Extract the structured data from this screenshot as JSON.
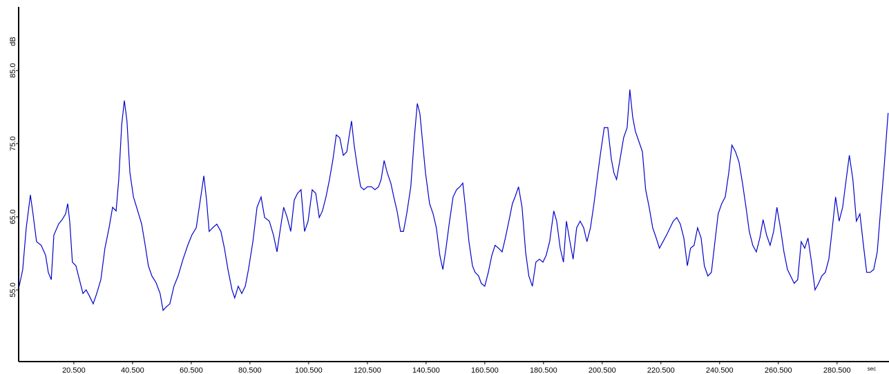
{
  "chart_data": {
    "type": "line",
    "y_label": "dB",
    "x_label": "sec",
    "color": "#0000cc",
    "xlim": [
      1.7,
      298.2
    ],
    "ylim": [
      45.2,
      93.7
    ],
    "xticks": [
      {
        "value": 20.5,
        "label": "20.500"
      },
      {
        "value": 40.5,
        "label": "40.500"
      },
      {
        "value": 60.5,
        "label": "60.500"
      },
      {
        "value": 80.5,
        "label": "80.500"
      },
      {
        "value": 100.5,
        "label": "100.500"
      },
      {
        "value": 120.5,
        "label": "120.500"
      },
      {
        "value": 140.5,
        "label": "140.500"
      },
      {
        "value": 160.5,
        "label": "160.500"
      },
      {
        "value": 180.5,
        "label": "180.500"
      },
      {
        "value": 200.5,
        "label": "200.500"
      },
      {
        "value": 220.5,
        "label": "220.500"
      },
      {
        "value": 240.5,
        "label": "240.500"
      },
      {
        "value": 260.5,
        "label": "260.500"
      },
      {
        "value": 280.5,
        "label": "280.500"
      }
    ],
    "yticks": [
      {
        "value": 55,
        "label": "55.0"
      },
      {
        "value": 65,
        "label": "65.0"
      },
      {
        "value": 75,
        "label": "75.0"
      },
      {
        "value": 85,
        "label": "85.0"
      }
    ],
    "x": [
      1.9,
      3.1,
      4.3,
      5.7,
      6.6,
      7.8,
      9.4,
      10.9,
      11.8,
      12.8,
      13.7,
      15.3,
      16.5,
      17.7,
      18.4,
      19.1,
      20.0,
      21.2,
      22.4,
      23.6,
      24.7,
      25.9,
      27.1,
      28.3,
      29.7,
      31.1,
      32.5,
      33.7,
      34.9,
      35.8,
      36.8,
      37.7,
      38.6,
      39.6,
      40.8,
      41.9,
      43.6,
      44.8,
      45.9,
      47.1,
      48.5,
      49.9,
      50.9,
      51.8,
      53.2,
      54.6,
      56.0,
      57.7,
      59.3,
      60.7,
      62.2,
      63.6,
      64.8,
      65.7,
      66.6,
      67.8,
      69.2,
      70.6,
      71.8,
      73.0,
      74.4,
      75.3,
      76.5,
      77.7,
      78.9,
      80.0,
      81.5,
      82.9,
      84.3,
      85.5,
      87.1,
      88.5,
      89.7,
      90.9,
      92.0,
      93.2,
      94.4,
      95.6,
      96.7,
      97.9,
      99.1,
      100.3,
      101.7,
      102.9,
      104.1,
      105.2,
      106.4,
      107.6,
      108.8,
      109.9,
      111.1,
      112.3,
      113.5,
      114.2,
      115.1,
      116.0,
      117.2,
      118.2,
      119.3,
      120.5,
      121.9,
      123.1,
      124.3,
      125.2,
      126.2,
      127.3,
      128.5,
      129.5,
      130.6,
      131.8,
      132.8,
      133.9,
      135.3,
      136.5,
      137.5,
      138.4,
      139.3,
      140.3,
      141.7,
      142.9,
      144.0,
      145.2,
      146.2,
      147.3,
      148.5,
      149.7,
      150.9,
      152.0,
      153.0,
      153.9,
      155.1,
      156.3,
      157.2,
      158.4,
      159.3,
      160.5,
      161.7,
      162.9,
      164.0,
      165.2,
      166.4,
      167.5,
      168.7,
      169.9,
      170.8,
      172.0,
      173.2,
      174.4,
      175.5,
      176.7,
      177.9,
      179.1,
      180.3,
      181.4,
      182.6,
      184.0,
      185.0,
      186.2,
      187.3,
      188.3,
      189.5,
      190.6,
      191.8,
      193.0,
      194.2,
      195.3,
      196.5,
      197.7,
      198.9,
      200.0,
      201.2,
      202.4,
      203.6,
      204.5,
      205.4,
      206.6,
      207.8,
      209.0,
      209.9,
      210.9,
      211.8,
      213.0,
      214.2,
      215.3,
      216.5,
      217.7,
      218.9,
      220.0,
      221.2,
      222.4,
      223.6,
      224.7,
      225.9,
      227.1,
      228.3,
      229.5,
      230.6,
      231.8,
      233.0,
      234.2,
      235.3,
      236.5,
      237.7,
      238.9,
      240.0,
      241.2,
      242.4,
      243.6,
      244.7,
      245.9,
      247.1,
      248.3,
      249.5,
      250.6,
      251.8,
      253.0,
      254.2,
      255.3,
      256.5,
      257.7,
      258.9,
      260.0,
      261.2,
      262.4,
      263.6,
      264.7,
      265.9,
      267.1,
      268.3,
      269.5,
      270.6,
      271.8,
      273.0,
      274.2,
      275.3,
      276.5,
      277.7,
      278.9,
      280.0,
      281.2,
      282.4,
      283.6,
      284.7,
      285.9,
      287.1,
      288.3,
      289.5,
      290.6,
      291.8,
      293.0,
      294.2,
      295.3,
      296.5,
      297.9
    ],
    "values": [
      55.5,
      57.8,
      63.5,
      68.0,
      65.4,
      61.6,
      61.1,
      59.7,
      57.4,
      56.4,
      62.5,
      64.0,
      64.6,
      65.4,
      66.8,
      64.4,
      58.8,
      58.3,
      56.4,
      54.5,
      55.0,
      54.1,
      53.1,
      54.5,
      56.4,
      60.7,
      63.5,
      66.3,
      65.8,
      70.1,
      77.6,
      80.9,
      78.1,
      71.0,
      67.7,
      66.3,
      64.0,
      61.1,
      58.3,
      56.9,
      56.0,
      54.5,
      52.2,
      52.6,
      53.1,
      55.5,
      56.9,
      59.2,
      61.1,
      62.5,
      63.5,
      67.3,
      70.6,
      67.3,
      63.0,
      63.5,
      64.0,
      63.0,
      60.7,
      57.8,
      55.0,
      53.9,
      55.5,
      54.5,
      55.5,
      57.8,
      61.6,
      66.3,
      67.7,
      64.9,
      64.4,
      62.5,
      60.2,
      63.5,
      66.3,
      64.9,
      63.0,
      67.3,
      68.2,
      68.7,
      63.0,
      64.4,
      68.7,
      68.2,
      64.9,
      65.8,
      67.7,
      70.1,
      72.9,
      76.2,
      75.8,
      73.4,
      73.9,
      75.8,
      78.1,
      74.8,
      71.5,
      69.1,
      68.7,
      69.1,
      69.1,
      68.7,
      69.1,
      70.1,
      72.7,
      71.0,
      69.6,
      67.7,
      65.8,
      63.0,
      63.0,
      65.4,
      69.1,
      75.8,
      80.5,
      79.1,
      75.3,
      71.0,
      66.8,
      65.4,
      63.5,
      59.7,
      57.8,
      60.7,
      64.4,
      67.7,
      68.7,
      69.1,
      69.6,
      66.3,
      61.6,
      58.3,
      57.4,
      56.9,
      55.9,
      55.5,
      57.4,
      59.7,
      61.1,
      60.7,
      60.2,
      62.1,
      64.4,
      66.8,
      67.7,
      69.1,
      66.3,
      60.2,
      56.9,
      55.5,
      58.8,
      59.2,
      58.8,
      59.7,
      61.6,
      65.8,
      64.4,
      60.7,
      58.8,
      64.4,
      61.6,
      59.2,
      63.5,
      64.4,
      63.5,
      61.6,
      63.5,
      66.8,
      70.6,
      73.9,
      77.2,
      77.2,
      72.9,
      71.0,
      70.1,
      72.9,
      75.8,
      77.2,
      82.4,
      78.6,
      76.7,
      75.3,
      73.9,
      68.7,
      66.3,
      63.5,
      62.1,
      60.7,
      61.6,
      62.5,
      63.5,
      64.4,
      64.9,
      64.0,
      62.1,
      58.3,
      60.7,
      61.1,
      63.5,
      62.1,
      58.3,
      56.9,
      57.4,
      61.6,
      65.4,
      66.8,
      67.7,
      71.0,
      74.8,
      73.9,
      72.5,
      69.6,
      66.3,
      63.0,
      61.1,
      60.2,
      62.1,
      64.6,
      62.5,
      61.1,
      63.0,
      66.3,
      63.5,
      60.2,
      57.8,
      56.9,
      55.9,
      56.4,
      61.6,
      60.7,
      62.1,
      58.8,
      55.0,
      55.9,
      56.9,
      57.4,
      59.2,
      63.5,
      67.7,
      64.4,
      66.3,
      70.1,
      73.4,
      70.1,
      64.4,
      65.4,
      61.1,
      57.4,
      57.4,
      57.8,
      60.2,
      65.8,
      71.6,
      79.2
    ]
  }
}
